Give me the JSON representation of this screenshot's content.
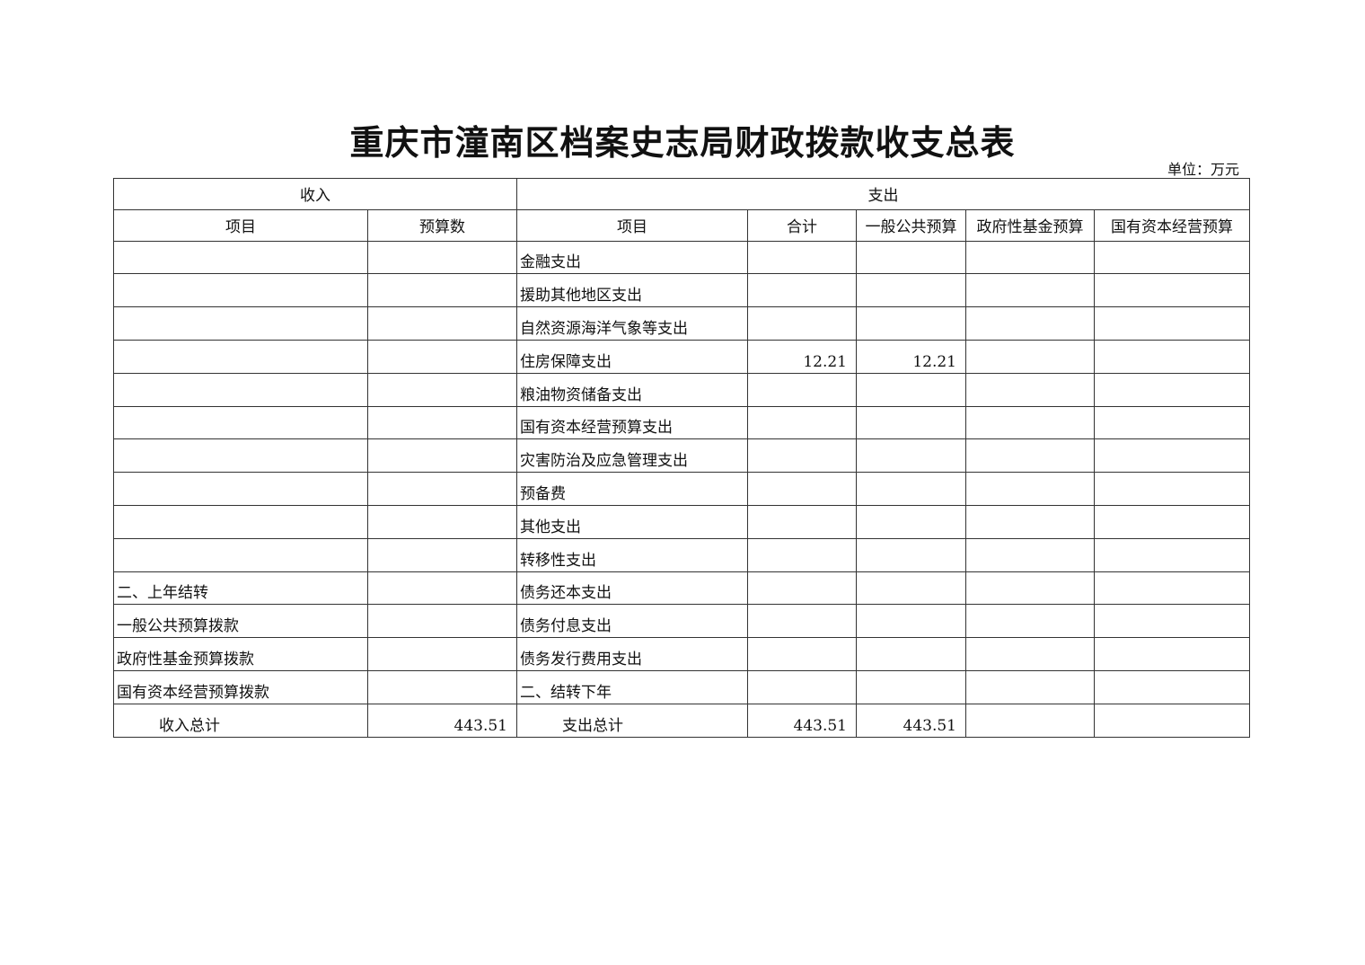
{
  "title": "重庆市潼南区档案史志局财政拨款收支总表",
  "unit": "单位：万元",
  "headers": {
    "income": "收入",
    "expense": "支出",
    "cols": [
      "项目",
      "预算数",
      "项目",
      "合计",
      "一般公共预算",
      "政府性基金预算",
      "国有资本经营预算"
    ]
  },
  "rows": [
    [
      "",
      "",
      "金融支出",
      "",
      "",
      "",
      ""
    ],
    [
      "",
      "",
      "援助其他地区支出",
      "",
      "",
      "",
      ""
    ],
    [
      "",
      "",
      "自然资源海洋气象等支出",
      "",
      "",
      "",
      ""
    ],
    [
      "",
      "",
      "住房保障支出",
      "12.21",
      "12.21",
      "",
      ""
    ],
    [
      "",
      "",
      "粮油物资储备支出",
      "",
      "",
      "",
      ""
    ],
    [
      "",
      "",
      "国有资本经营预算支出",
      "",
      "",
      "",
      ""
    ],
    [
      "",
      "",
      "灾害防治及应急管理支出",
      "",
      "",
      "",
      ""
    ],
    [
      "",
      "",
      "预备费",
      "",
      "",
      "",
      ""
    ],
    [
      "",
      "",
      "其他支出",
      "",
      "",
      "",
      ""
    ],
    [
      "",
      "",
      "转移性支出",
      "",
      "",
      "",
      ""
    ],
    [
      "二、上年结转",
      "",
      "债务还本支出",
      "",
      "",
      "",
      ""
    ],
    [
      "一般公共预算拨款",
      "",
      "债务付息支出",
      "",
      "",
      "",
      ""
    ],
    [
      "政府性基金预算拨款",
      "",
      "债务发行费用支出",
      "",
      "",
      "",
      ""
    ],
    [
      "国有资本经营预算拨款",
      "",
      "二、结转下年",
      "",
      "",
      "",
      ""
    ],
    [
      "收入总计",
      "443.51",
      "支出总计",
      "443.51",
      "443.51",
      "",
      ""
    ]
  ]
}
